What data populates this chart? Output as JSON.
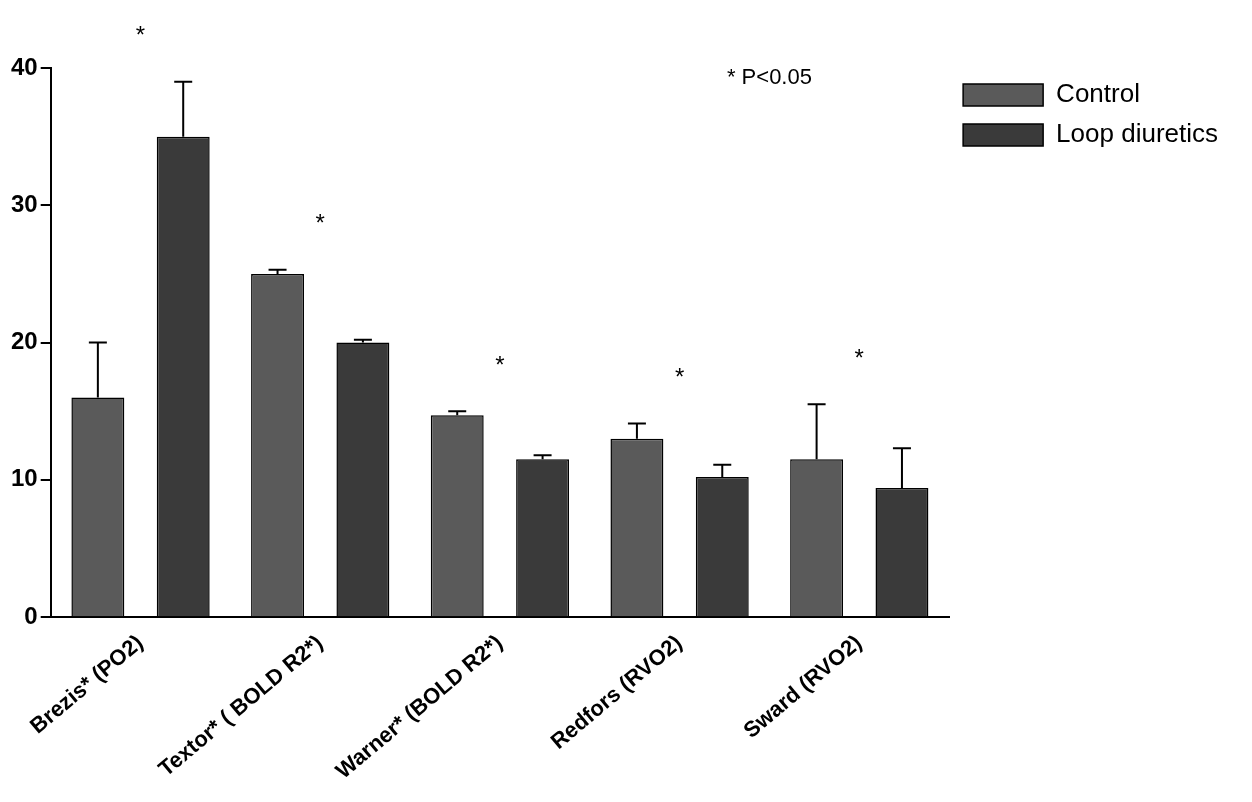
{
  "chart_data": {
    "type": "bar",
    "categories": [
      "Brezis* (PO2)",
      "Textor* ( BOLD R2*)",
      "Warner* (BOLD R2*)",
      "Redfors (RVO2)",
      "Sward (RVO2)"
    ],
    "series": [
      {
        "name": "Control",
        "color": "#5a5a5a",
        "values": [
          16,
          25,
          14.7,
          13,
          11.5
        ],
        "errors": [
          [
            16,
            20
          ],
          [
            25,
            25.3
          ],
          [
            14.7,
            15
          ],
          [
            13,
            14.1
          ],
          [
            11.5,
            15.5
          ]
        ]
      },
      {
        "name": "Loop diuretics",
        "color": "#3a3a3a",
        "values": [
          35,
          20,
          11.5,
          10.2,
          9.4
        ],
        "errors": [
          [
            35,
            39
          ],
          [
            20,
            20.2
          ],
          [
            11.5,
            11.8
          ],
          [
            10.2,
            11.1
          ],
          [
            9.4,
            12.3
          ]
        ]
      }
    ],
    "ylim": [
      0,
      40
    ],
    "yticks": [
      0,
      10,
      20,
      30,
      40
    ],
    "grid": false,
    "legend": "top right",
    "annotations": [
      "* P<0.05",
      "*",
      "*",
      "*",
      "*",
      "*"
    ]
  }
}
